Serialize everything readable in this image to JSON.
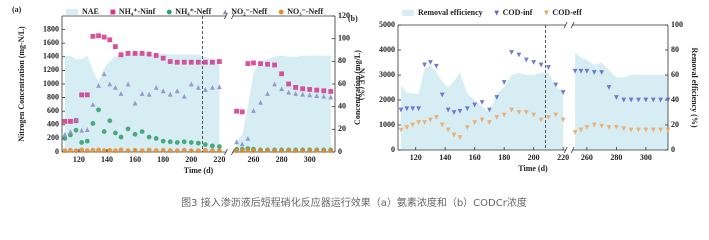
{
  "chart_data": [
    {
      "type": "scatter",
      "panel_label": "(a)",
      "xlabel": "Time (d)",
      "ylabel": "Nitrogen Concentration (mg-N/L)",
      "y2label": "NAE (%)",
      "xlim": [
        [
          108,
          225
        ],
        [
          245,
          318
        ]
      ],
      "xticks": [
        120,
        140,
        160,
        180,
        200,
        220,
        260,
        280,
        300
      ],
      "ylim": [
        0,
        2000
      ],
      "yticks": [
        0,
        200,
        400,
        600,
        800,
        1000,
        1200,
        1400,
        1600,
        1800
      ],
      "y2lim": [
        0,
        120
      ],
      "y2ticks": [
        0,
        20,
        40,
        60,
        80,
        100,
        120
      ],
      "vline": 208,
      "x": [
        110,
        114,
        118,
        122,
        126,
        130,
        134,
        138,
        142,
        146,
        150,
        155,
        160,
        165,
        170,
        175,
        180,
        185,
        190,
        195,
        200,
        205,
        210,
        215,
        220,
        248,
        252,
        256,
        260,
        265,
        270,
        275,
        280,
        285,
        290,
        295,
        300,
        305,
        310,
        315
      ],
      "series": [
        {
          "name": "NAE",
          "color": "#d6eef3",
          "style": "area",
          "axis": "y2",
          "values": [
            85,
            85,
            82,
            82,
            85,
            72,
            62,
            74,
            80,
            84,
            86,
            86,
            88,
            87,
            86,
            86,
            87,
            86,
            86,
            86,
            86,
            86,
            84,
            82,
            82,
            10,
            15,
            40,
            70,
            80,
            82,
            84,
            85,
            84,
            84,
            85,
            85,
            85,
            85,
            85
          ]
        },
        {
          "name": "NH₄⁺-Ninf",
          "color": "#d6338a",
          "marker": "square",
          "values": [
            450,
            450,
            460,
            840,
            840,
            1700,
            1710,
            1690,
            1650,
            1550,
            1430,
            1450,
            1450,
            1450,
            1440,
            1420,
            1380,
            1330,
            1320,
            1320,
            1320,
            1320,
            1320,
            1320,
            1330,
            600,
            590,
            1300,
            1310,
            1300,
            1290,
            1280,
            1150,
            1000,
            950,
            930,
            920,
            910,
            900,
            890
          ]
        },
        {
          "name": "NH₄⁺-Neff",
          "color": "#2e9e6a",
          "marker": "circle",
          "values": [
            200,
            250,
            320,
            140,
            160,
            420,
            620,
            300,
            460,
            280,
            220,
            340,
            260,
            300,
            220,
            200,
            160,
            150,
            140,
            150,
            140,
            130,
            110,
            90,
            80,
            40,
            40,
            50,
            40,
            30,
            30,
            30,
            30,
            30,
            30,
            30,
            30,
            30,
            30,
            30
          ]
        },
        {
          "name": "NO₂⁻-Neff",
          "color": "#8c88c4",
          "marker": "triangle",
          "values": [
            260,
            300,
            480,
            320,
            330,
            700,
            980,
            1150,
            1000,
            950,
            860,
            1000,
            720,
            860,
            850,
            950,
            900,
            850,
            900,
            820,
            1000,
            950,
            920,
            950,
            960,
            150,
            120,
            200,
            610,
            730,
            860,
            1000,
            930,
            880,
            860,
            850,
            840,
            830,
            820,
            810
          ]
        },
        {
          "name": "NO₃⁻-Neff",
          "color": "#e8892b",
          "marker": "circle",
          "values": [
            20,
            25,
            20,
            30,
            20,
            25,
            30,
            20,
            25,
            20,
            30,
            20,
            25,
            20,
            30,
            20,
            25,
            20,
            20,
            25,
            20,
            20,
            25,
            20,
            20,
            20,
            20,
            25,
            20,
            20,
            25,
            20,
            20,
            25,
            20,
            20,
            20,
            25,
            20,
            20
          ]
        }
      ]
    },
    {
      "type": "scatter",
      "panel_label": "(b)",
      "xlabel": "Time (d)",
      "ylabel": "Concentration (mg/L)",
      "y2label": "Removal efficiency (%)",
      "xlim": [
        [
          108,
          222
        ],
        [
          250,
          315
        ]
      ],
      "xticks": [
        120,
        140,
        160,
        180,
        200,
        220,
        260,
        280,
        300
      ],
      "ylim": [
        0,
        5000
      ],
      "yticks": [
        0,
        1000,
        2000,
        3000,
        4000,
        5000
      ],
      "y2lim": [
        0,
        100
      ],
      "y2ticks": [
        0,
        20,
        40,
        60,
        80,
        100
      ],
      "vline": 208,
      "x": [
        110,
        114,
        118,
        122,
        126,
        130,
        134,
        138,
        142,
        146,
        150,
        155,
        160,
        165,
        170,
        175,
        180,
        185,
        190,
        195,
        200,
        205,
        210,
        215,
        220,
        252,
        256,
        260,
        265,
        270,
        275,
        280,
        285,
        290,
        295,
        300,
        305,
        310,
        315
      ],
      "series": [
        {
          "name": "Removal efficiency",
          "color": "#d6eef3",
          "style": "area",
          "axis": "y2",
          "values": [
            52,
            46,
            45,
            45,
            65,
            68,
            62,
            55,
            50,
            55,
            62,
            45,
            40,
            35,
            30,
            45,
            50,
            60,
            62,
            60,
            60,
            62,
            62,
            50,
            48,
            78,
            74,
            72,
            68,
            70,
            64,
            58,
            58,
            60,
            60,
            60,
            60,
            60,
            60
          ]
        },
        {
          "name": "COD-inf",
          "color": "#5b63c9",
          "marker": "triangle-down",
          "values": [
            1600,
            1650,
            1650,
            1650,
            3400,
            3500,
            3350,
            2200,
            1600,
            1500,
            1550,
            1650,
            1800,
            1900,
            1600,
            2100,
            2700,
            3900,
            3800,
            3600,
            3500,
            3400,
            3300,
            2600,
            2300,
            3150,
            3150,
            3150,
            3100,
            3100,
            2500,
            2100,
            2000,
            2000,
            2000,
            2000,
            2000,
            2000,
            2000
          ]
        },
        {
          "name": "COD-eff",
          "color": "#f2a35e",
          "marker": "triangle-down",
          "values": [
            800,
            900,
            1000,
            1100,
            1100,
            1200,
            1300,
            1000,
            800,
            600,
            500,
            900,
            1100,
            1200,
            1100,
            1300,
            1400,
            1600,
            1500,
            1500,
            1400,
            1200,
            1300,
            1400,
            1200,
            700,
            800,
            900,
            1000,
            950,
            900,
            900,
            850,
            800,
            800,
            800,
            800,
            800,
            800
          ]
        }
      ]
    }
  ],
  "caption": "图3 接入渗沥液后短程硝化反应器运行效果（a）氨素浓度和（b）CODCr浓度"
}
